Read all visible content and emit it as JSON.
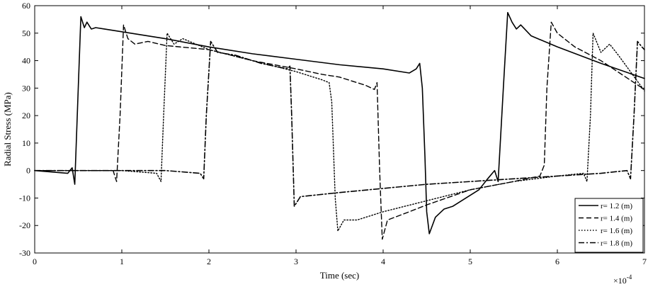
{
  "chart_data": {
    "type": "line",
    "title": "",
    "xlabel": "Time (sec)",
    "ylabel": "Radial Stress (MPa)",
    "x_multiplier_label": "×10",
    "x_multiplier_exponent": "-4",
    "xlim": [
      0,
      7
    ],
    "ylim": [
      -30,
      60
    ],
    "xticks": [
      0,
      1,
      2,
      3,
      4,
      5,
      6,
      7
    ],
    "xtick_labels": [
      "0",
      "1",
      "2",
      "3",
      "4",
      "5",
      "6",
      "7"
    ],
    "yticks": [
      -30,
      -20,
      -10,
      0,
      10,
      20,
      30,
      40,
      50,
      60
    ],
    "ytick_labels": [
      "-30",
      "-20",
      "-10",
      "0",
      "10",
      "20",
      "30",
      "40",
      "50",
      "60"
    ],
    "grid": false,
    "legend": "bottom-right",
    "line_color": "#000000",
    "series": [
      {
        "name": "r= 1.2 (m)",
        "dash": "solid",
        "points": [
          [
            0,
            0
          ],
          [
            0.38,
            -1
          ],
          [
            0.43,
            1
          ],
          [
            0.46,
            -5
          ],
          [
            0.5,
            30
          ],
          [
            0.53,
            56
          ],
          [
            0.57,
            52
          ],
          [
            0.6,
            54
          ],
          [
            0.65,
            51.5
          ],
          [
            0.7,
            52
          ],
          [
            0.8,
            51.5
          ],
          [
            1.0,
            50.5
          ],
          [
            1.5,
            48
          ],
          [
            2.0,
            45
          ],
          [
            2.5,
            42.5
          ],
          [
            3.0,
            40.5
          ],
          [
            3.5,
            38.5
          ],
          [
            4.0,
            37
          ],
          [
            4.3,
            35.5
          ],
          [
            4.38,
            37
          ],
          [
            4.42,
            39
          ],
          [
            4.45,
            30
          ],
          [
            4.48,
            5
          ],
          [
            4.5,
            -15
          ],
          [
            4.53,
            -23
          ],
          [
            4.6,
            -17
          ],
          [
            4.7,
            -14
          ],
          [
            4.8,
            -13
          ],
          [
            5.0,
            -9
          ],
          [
            5.1,
            -7
          ],
          [
            5.2,
            -3
          ],
          [
            5.28,
            0
          ],
          [
            5.32,
            -4
          ],
          [
            5.38,
            30
          ],
          [
            5.43,
            57.5
          ],
          [
            5.48,
            54
          ],
          [
            5.53,
            51.5
          ],
          [
            5.58,
            53
          ],
          [
            5.7,
            49
          ],
          [
            6.0,
            45
          ],
          [
            6.5,
            39
          ],
          [
            7.0,
            33.5
          ]
        ]
      },
      {
        "name": "r= 1.4 (m)",
        "dash": "dashed",
        "points": [
          [
            0,
            0
          ],
          [
            0.9,
            0
          ],
          [
            0.94,
            -4
          ],
          [
            0.98,
            20
          ],
          [
            1.02,
            53
          ],
          [
            1.07,
            48
          ],
          [
            1.15,
            46
          ],
          [
            1.3,
            47
          ],
          [
            1.5,
            45.5
          ],
          [
            2.0,
            44
          ],
          [
            2.5,
            40
          ],
          [
            3.0,
            37
          ],
          [
            3.3,
            35
          ],
          [
            3.5,
            34
          ],
          [
            3.8,
            31
          ],
          [
            3.9,
            29.5
          ],
          [
            3.93,
            32
          ],
          [
            3.96,
            0
          ],
          [
            3.99,
            -25
          ],
          [
            4.05,
            -18
          ],
          [
            4.3,
            -15
          ],
          [
            4.5,
            -12.5
          ],
          [
            5.0,
            -7
          ],
          [
            5.5,
            -4
          ],
          [
            5.8,
            -2
          ],
          [
            5.85,
            2
          ],
          [
            5.88,
            30
          ],
          [
            5.93,
            54
          ],
          [
            6.0,
            50
          ],
          [
            6.2,
            45
          ],
          [
            6.5,
            40
          ],
          [
            7.0,
            29.5
          ]
        ]
      },
      {
        "name": "r= 1.6 (m)",
        "dash": "dotted",
        "points": [
          [
            0,
            0
          ],
          [
            1.0,
            0
          ],
          [
            1.4,
            -1
          ],
          [
            1.45,
            -4
          ],
          [
            1.48,
            20
          ],
          [
            1.52,
            50
          ],
          [
            1.6,
            46
          ],
          [
            1.7,
            48
          ],
          [
            2.0,
            44
          ],
          [
            2.5,
            40
          ],
          [
            3.0,
            36
          ],
          [
            3.3,
            33
          ],
          [
            3.38,
            32
          ],
          [
            3.41,
            25
          ],
          [
            3.45,
            -10
          ],
          [
            3.48,
            -22
          ],
          [
            3.55,
            -18
          ],
          [
            3.7,
            -18
          ],
          [
            4.0,
            -15
          ],
          [
            4.5,
            -11
          ],
          [
            5.0,
            -7
          ],
          [
            5.5,
            -4
          ],
          [
            6.0,
            -2
          ],
          [
            6.3,
            -1
          ],
          [
            6.34,
            -4
          ],
          [
            6.38,
            20
          ],
          [
            6.41,
            50
          ],
          [
            6.5,
            43
          ],
          [
            6.6,
            46
          ],
          [
            6.7,
            42
          ],
          [
            7.0,
            29
          ]
        ]
      },
      {
        "name": "r= 1.8 (m)",
        "dash": "dashdot",
        "points": [
          [
            0,
            0
          ],
          [
            1.5,
            0
          ],
          [
            1.9,
            -1
          ],
          [
            1.94,
            -3
          ],
          [
            1.97,
            20
          ],
          [
            2.02,
            47
          ],
          [
            2.1,
            43
          ],
          [
            2.3,
            42
          ],
          [
            2.6,
            39
          ],
          [
            2.9,
            37
          ],
          [
            2.93,
            38
          ],
          [
            2.95,
            20
          ],
          [
            2.98,
            -13
          ],
          [
            3.05,
            -9.5
          ],
          [
            3.2,
            -9
          ],
          [
            3.5,
            -8
          ],
          [
            4.0,
            -6.5
          ],
          [
            4.5,
            -5
          ],
          [
            5.0,
            -4
          ],
          [
            5.5,
            -3
          ],
          [
            6.0,
            -2
          ],
          [
            6.5,
            -1
          ],
          [
            6.8,
            0
          ],
          [
            6.84,
            -3
          ],
          [
            6.88,
            20
          ],
          [
            6.92,
            47
          ],
          [
            6.97,
            45
          ],
          [
            7.0,
            44
          ]
        ]
      }
    ]
  }
}
